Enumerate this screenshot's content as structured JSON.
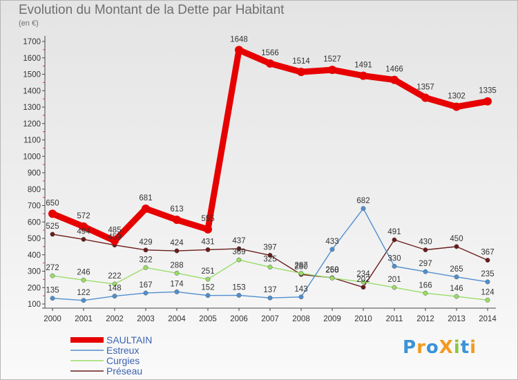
{
  "title": "Evolution du Montant de la Dette par Habitant",
  "subtitle": "(en €)",
  "logo": {
    "text": "ProXiti",
    "letters": [
      {
        "ch": "P",
        "color": "#3a93d6"
      },
      {
        "ch": "r",
        "color": "#f29a1e"
      },
      {
        "ch": "o",
        "color": "#3a93d6"
      },
      {
        "ch": "X",
        "color": "#f29a1e"
      },
      {
        "ch": "i",
        "color": "#8cc63f"
      },
      {
        "ch": "t",
        "color": "#3a93d6"
      },
      {
        "ch": "i",
        "color": "#f29a1e"
      }
    ]
  },
  "chart_data": {
    "type": "line",
    "title": "Evolution du Montant de la Dette par Habitant",
    "subtitle": "(en €)",
    "x": [
      2000,
      2001,
      2002,
      2003,
      2004,
      2005,
      2006,
      2007,
      2008,
      2009,
      2010,
      2011,
      2012,
      2013,
      2014
    ],
    "ylim": [
      100,
      1700
    ],
    "yticks": [
      100,
      200,
      300,
      400,
      500,
      600,
      700,
      800,
      900,
      1000,
      1100,
      1200,
      1300,
      1400,
      1500,
      1600,
      1700
    ],
    "grid": false,
    "legend_position": "bottom-left",
    "series": [
      {
        "name": "SAULTAIN",
        "color": "#e60000",
        "values": [
          650,
          572,
          485,
          681,
          613,
          555,
          1648,
          1566,
          1514,
          1527,
          1491,
          1466,
          1357,
          1302,
          1335
        ]
      },
      {
        "name": "Estreux",
        "color": "#4f8fcf",
        "values": [
          135,
          122,
          148,
          167,
          174,
          152,
          153,
          137,
          143,
          433,
          682,
          330,
          297,
          265,
          235
        ]
      },
      {
        "name": "Curgies",
        "color": "#99dd66",
        "values": [
          272,
          246,
          222,
          322,
          288,
          251,
          369,
          325,
          287,
          258,
          234,
          201,
          166,
          146,
          124
        ]
      },
      {
        "name": "Préseau",
        "color": "#6b1a1a",
        "values": [
          525,
          494,
          459,
          429,
          424,
          431,
          437,
          397,
          280,
          260,
          202,
          491,
          430,
          450,
          367
        ]
      }
    ]
  }
}
